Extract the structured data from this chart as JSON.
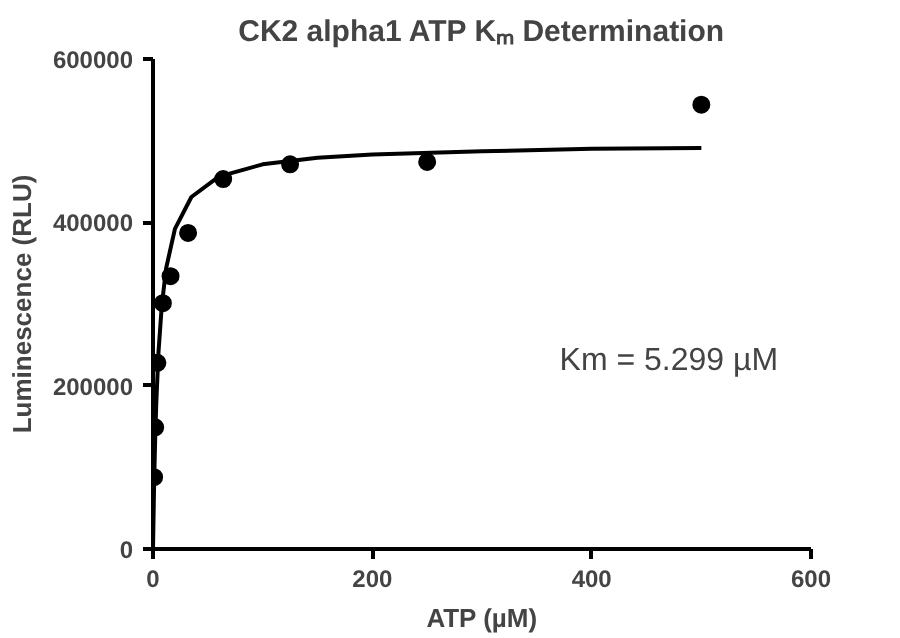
{
  "chart_data": {
    "type": "scatter",
    "title": "CK2 alpha1 ATP Kₘ Determination",
    "xlabel": "ATP (µM)",
    "ylabel": "Luminescence (RLU)",
    "xlim": [
      0,
      600
    ],
    "xticks": [
      0,
      200,
      400,
      600
    ],
    "ylim": [
      0,
      600000
    ],
    "yticks": [
      0,
      200000,
      400000,
      600000
    ],
    "grid": false,
    "marker": "circle",
    "series": [
      {
        "color": "#000000",
        "x": [
          1,
          2,
          4,
          9,
          16,
          32,
          64,
          125,
          250,
          500
        ],
        "values": [
          88000,
          149000,
          228000,
          301000,
          334000,
          387000,
          453000,
          471000,
          474000,
          544000
        ]
      },
      {
        "type": "line",
        "color": "#000000",
        "marker": "none",
        "line_style": "solid",
        "x": [
          0,
          1,
          2,
          3,
          5,
          8,
          12,
          20,
          35,
          60,
          100,
          150,
          200,
          300,
          400,
          500
        ],
        "values": [
          0,
          79000,
          136000,
          179000,
          241000,
          298000,
          344000,
          392000,
          431000,
          456000,
          471000,
          479000,
          483000,
          487000,
          490000,
          491000
        ]
      }
    ],
    "annotations": [
      "Km = 5.299 µM"
    ]
  }
}
